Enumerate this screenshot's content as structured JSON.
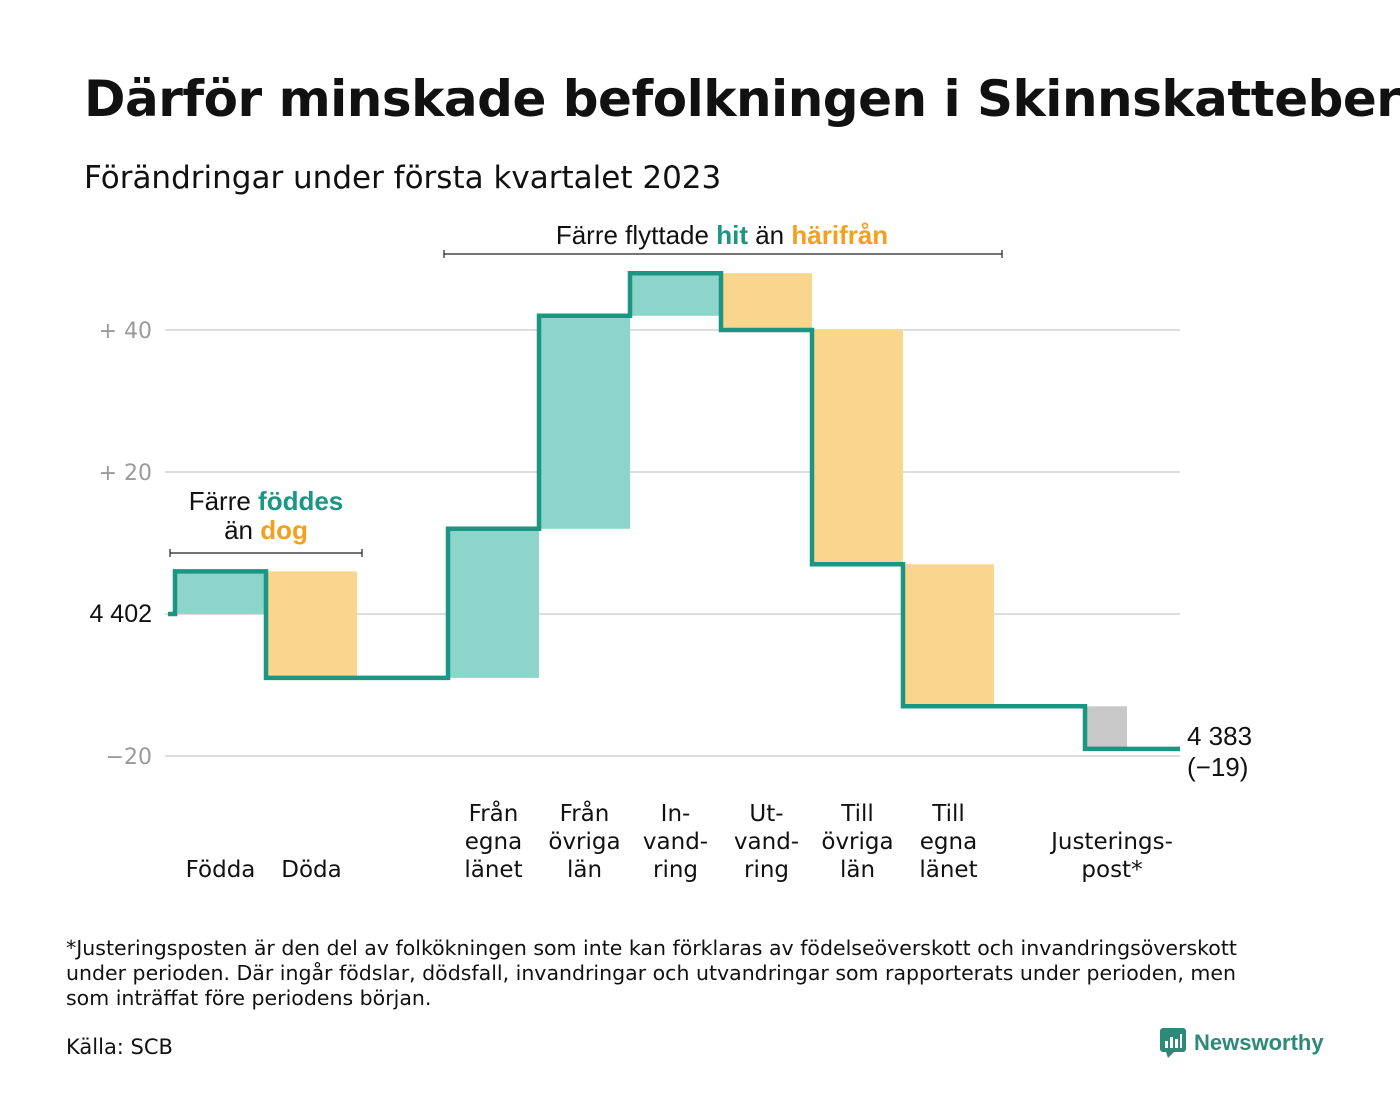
{
  "title": "Därför minskade befolkningen i Skinnskatteberg",
  "subtitle": "Förändringar under första kvartalet 2023",
  "colors": {
    "teal": "#1a9682",
    "teal_fill": "#8dd5cb",
    "orange": "#f4a01e",
    "orange_fill": "#fad58d",
    "gray_fill": "#c8c8c8",
    "grid": "#dddddd",
    "axis_text": "#9a9a9a"
  },
  "chart_data": {
    "type": "waterfall",
    "start": {
      "label": "4 402",
      "value": 0
    },
    "end": {
      "label": "4 383",
      "change_label": "(−19)",
      "value": -19
    },
    "yticks": [
      {
        "value": 40,
        "label": "+ 40"
      },
      {
        "value": 20,
        "label": "+ 20"
      },
      {
        "value": 0,
        "label": "4 402"
      },
      {
        "value": -20,
        "label": "−20"
      }
    ],
    "ylim": [
      -22,
      48
    ],
    "grid": true,
    "steps": [
      {
        "label_lines": [
          "Födda"
        ],
        "value": 6,
        "kind": "in",
        "gap_after": false
      },
      {
        "label_lines": [
          "Döda"
        ],
        "value": -15,
        "kind": "out",
        "gap_after": true
      },
      {
        "label_lines": [
          "Från",
          "egna",
          "länet"
        ],
        "value": 21,
        "kind": "in",
        "gap_after": false
      },
      {
        "label_lines": [
          "Från",
          "övriga",
          "län"
        ],
        "value": 30,
        "kind": "in",
        "gap_after": false
      },
      {
        "label_lines": [
          "In-",
          "vand-",
          "ring"
        ],
        "value": 6,
        "kind": "in",
        "gap_after": false
      },
      {
        "label_lines": [
          "Ut-",
          "vand-",
          "ring"
        ],
        "value": -8,
        "kind": "out",
        "gap_after": false
      },
      {
        "label_lines": [
          "Till",
          "övriga",
          "län"
        ],
        "value": -33,
        "kind": "out",
        "gap_after": false
      },
      {
        "label_lines": [
          "Till",
          "egna",
          "länet"
        ],
        "value": -20,
        "kind": "out",
        "gap_after": true
      },
      {
        "label_lines": [
          "Justerings-",
          "post*"
        ],
        "value": -6,
        "kind": "adjust",
        "gap_after": false
      }
    ],
    "annotations": [
      {
        "parts": [
          {
            "text": "Färre flyttade ",
            "color": ""
          },
          {
            "text": "hit",
            "color": "teal"
          },
          {
            "text": " än ",
            "color": ""
          },
          {
            "text": "härifrån",
            "color": "orange"
          }
        ]
      },
      {
        "line1": [
          {
            "text": "Färre ",
            "color": ""
          },
          {
            "text": "föddes",
            "color": "teal"
          }
        ],
        "line2": [
          {
            "text": "än ",
            "color": ""
          },
          {
            "text": "dog",
            "color": "orange"
          }
        ]
      }
    ]
  },
  "footnote": [
    "*Justeringsposten är den del av folkökningen som inte kan förklaras av födelseöverskott och invandringsöverskott",
    "under perioden. Där ingår födslar, dödsfall, invandringar och utvandringar som rapporterats under perioden, men",
    "som inträffat före periodens början."
  ],
  "source": "Källa: SCB",
  "brand": {
    "name": "Newsworthy",
    "icon": "newsworthy-logo-icon"
  }
}
